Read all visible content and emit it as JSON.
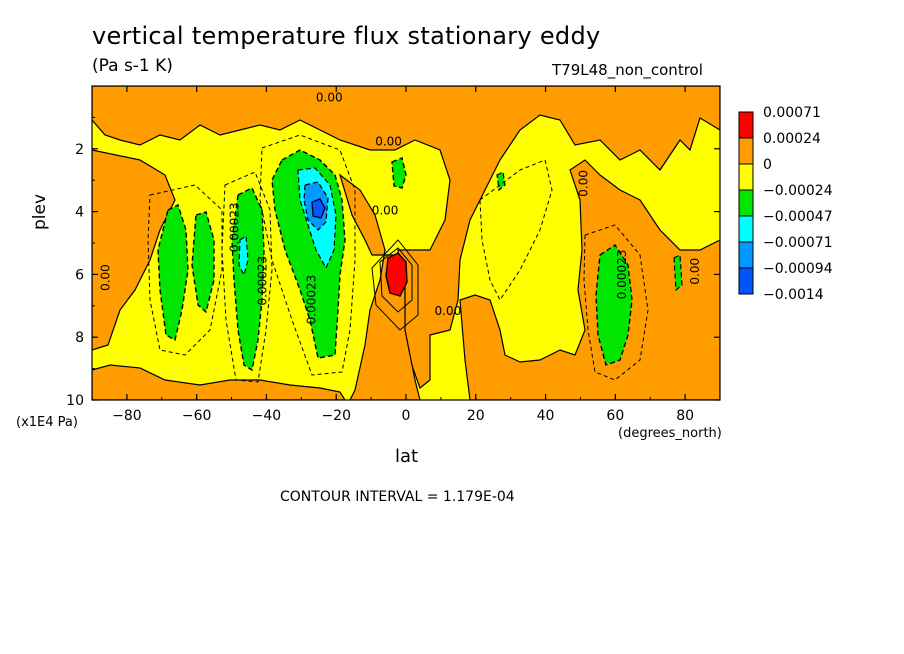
{
  "chart_data": {
    "type": "heatmap",
    "title": "vertical temperature flux stationary eddy",
    "subtitle": "(Pa s-1 K)",
    "run_label": "T79L48_non_control",
    "xlabel": "lat",
    "x_units": "(degrees_north)",
    "ylabel": "plev",
    "y_units": "(x1E4 Pa)",
    "xlim": [
      -90,
      90
    ],
    "ylim": [
      10,
      0
    ],
    "x_ticks": [
      "-80",
      "-60",
      "-40",
      "-20",
      "0",
      "20",
      "40",
      "60",
      "80"
    ],
    "y_ticks": [
      "2",
      "4",
      "6",
      "8",
      "10"
    ],
    "contour_interval_text": "CONTOUR INTERVAL = 1.179E-04",
    "legend": {
      "labels": [
        "0.00071",
        "0.00024",
        "0",
        "−0.00024",
        "−0.00047",
        "−0.00071",
        "−0.00094",
        "−0.0014"
      ],
      "colors": [
        "#ff0000",
        "#ff9d00",
        "#ffff00",
        "#00e600",
        "#00ffff",
        "#0099ff",
        "#0055ff"
      ]
    },
    "contour_labels": [
      {
        "text": "0.00",
        "lat": -22,
        "plev": 0.5
      },
      {
        "text": "0.00",
        "lat": -5,
        "plev": 1.9
      },
      {
        "text": "0.00",
        "lat": -85,
        "plev": 6.1
      },
      {
        "text": "0.00",
        "lat": -6,
        "plev": 4.1
      },
      {
        "text": "0.00",
        "lat": 12,
        "plev": 7.3
      },
      {
        "text": "0.00",
        "lat": 52,
        "plev": 3.1
      },
      {
        "text": "0.00",
        "lat": 84,
        "plev": 5.9
      },
      {
        "text": "0.00023",
        "lat": -48,
        "plev": 4.5
      },
      {
        "text": "0.00023",
        "lat": -40,
        "plev": 6.2
      },
      {
        "text": "0.00023",
        "lat": -26,
        "plev": 6.8
      },
      {
        "text": "0.00023",
        "lat": 63,
        "plev": 6.0
      }
    ],
    "features": [
      {
        "kind": "negative_minimum",
        "lat": -26,
        "plev": 4.0,
        "value": -0.00094
      },
      {
        "kind": "positive_maximum",
        "lat": -3,
        "plev": 6.0,
        "value": 0.00071
      },
      {
        "kind": "negative_band",
        "lat": -35,
        "plev_range": [
          1.8,
          8.6
        ],
        "value": -0.00047
      },
      {
        "kind": "negative_band",
        "lat": -48,
        "plev_range": [
          3.5,
          8.8
        ],
        "value": -0.00047
      },
      {
        "kind": "negative_band",
        "lat": 60,
        "plev_range": [
          5.0,
          9.2
        ],
        "value": -0.00047
      }
    ]
  }
}
